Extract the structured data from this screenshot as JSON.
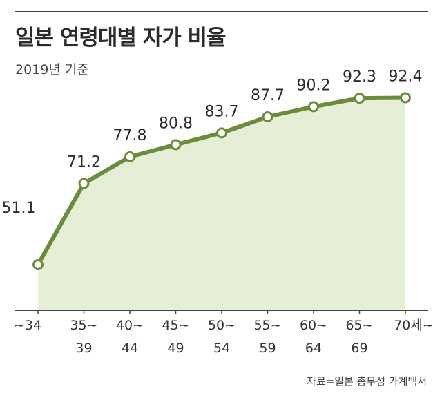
{
  "header": {
    "title": "일본 연령대별 자가 비율",
    "subtitle": "2019년 기준"
  },
  "source": "자료=일본 총무성 가계백서",
  "colors": {
    "line": "#6a8c3c",
    "fill": "#e4efd5",
    "marker_fill": "#ffffff"
  },
  "chart_data": {
    "type": "area",
    "title": "일본 연령대별 자가 비율",
    "subtitle": "2019년 기준",
    "categories": [
      "~34",
      "35~39",
      "40~44",
      "45~49",
      "50~54",
      "55~59",
      "60~64",
      "65~69",
      "70세~"
    ],
    "x_tick_labels": [
      [
        "~34"
      ],
      [
        "35~",
        "39"
      ],
      [
        "40~",
        "44"
      ],
      [
        "45~",
        "49"
      ],
      [
        "50~",
        "54"
      ],
      [
        "55~",
        "59"
      ],
      [
        "60~",
        "64"
      ],
      [
        "65~",
        "69"
      ],
      [
        "70세~"
      ]
    ],
    "values": [
      51.1,
      71.2,
      77.8,
      80.8,
      83.7,
      87.7,
      90.2,
      92.3,
      92.4
    ],
    "data_labels": [
      "51.1",
      "71.2",
      "77.8",
      "80.8",
      "83.7",
      "87.7",
      "90.2",
      "92.3",
      "92.4"
    ],
    "xlabel": "",
    "ylabel": "",
    "ylim": [
      40,
      100
    ],
    "grid": false,
    "legend": "none"
  }
}
